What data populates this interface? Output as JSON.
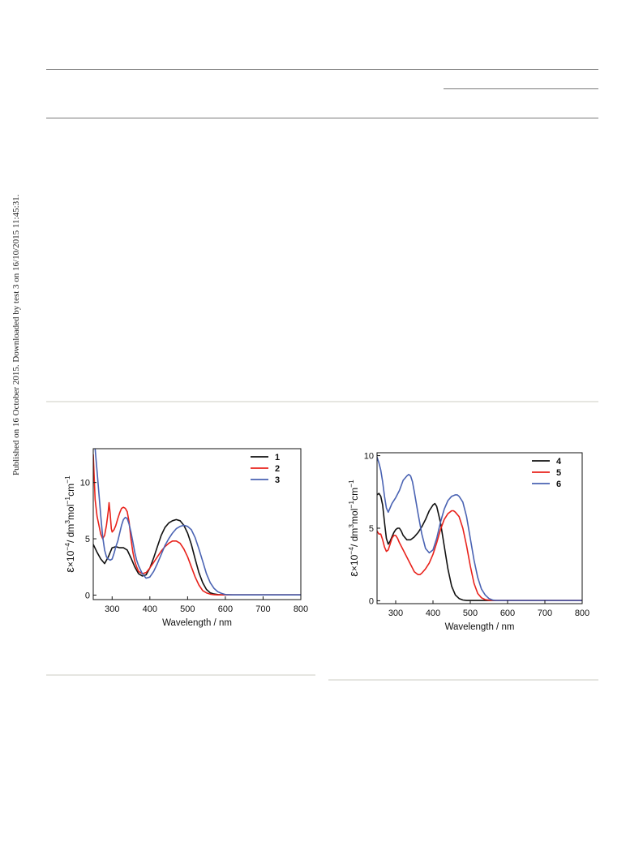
{
  "side_note": "Published on 16 October 2015. Downloaded by test 3 on 16/10/2015 11:45:31.",
  "chart_data": [
    {
      "type": "line",
      "xlabel": "Wavelength / nm",
      "ylabel_parts": [
        "ε",
        "×10",
        "−4",
        "/ dm",
        "3",
        "mol",
        "−1",
        "cm",
        "−1"
      ],
      "xlim": [
        250,
        800
      ],
      "ylim": [
        -0.4,
        13
      ],
      "xticks": [
        300,
        400,
        500,
        600,
        700,
        800
      ],
      "yticks": [
        0,
        5,
        10
      ],
      "legend_position": "top-right",
      "series": [
        {
          "name": "1",
          "color": "#111111",
          "x": [
            250,
            260,
            270,
            280,
            290,
            300,
            310,
            320,
            330,
            340,
            350,
            360,
            370,
            380,
            390,
            400,
            410,
            420,
            430,
            440,
            450,
            460,
            470,
            480,
            490,
            500,
            510,
            520,
            530,
            540,
            550,
            560,
            570,
            580,
            590,
            600,
            620,
            650,
            700,
            750,
            800
          ],
          "y": [
            4.5,
            3.8,
            3.2,
            2.8,
            3.4,
            4.2,
            4.3,
            4.2,
            4.2,
            4.0,
            3.3,
            2.5,
            1.9,
            1.7,
            1.8,
            2.4,
            3.3,
            4.3,
            5.3,
            6.0,
            6.4,
            6.6,
            6.7,
            6.6,
            6.2,
            5.5,
            4.5,
            3.2,
            2.0,
            1.1,
            0.5,
            0.2,
            0.1,
            0.05,
            0.02,
            0.02,
            0.02,
            0.02,
            0.02,
            0.02,
            0.02
          ]
        },
        {
          "name": "2",
          "color": "#e8221b",
          "x": [
            250,
            255,
            260,
            265,
            270,
            275,
            280,
            285,
            290,
            292,
            295,
            298,
            300,
            305,
            310,
            315,
            320,
            325,
            330,
            335,
            340,
            345,
            350,
            355,
            360,
            365,
            370,
            380,
            390,
            400,
            410,
            420,
            430,
            440,
            450,
            460,
            470,
            480,
            490,
            500,
            510,
            520,
            530,
            540,
            550,
            560,
            570,
            580,
            590,
            600,
            620,
            650,
            700,
            750,
            800
          ],
          "y": [
            12.5,
            8.5,
            7.0,
            6.2,
            5.4,
            5.0,
            5.3,
            6.2,
            7.5,
            8.2,
            7.2,
            5.9,
            5.6,
            5.8,
            6.2,
            6.8,
            7.3,
            7.7,
            7.8,
            7.7,
            7.4,
            6.5,
            5.0,
            3.8,
            3.0,
            2.5,
            2.1,
            1.9,
            2.0,
            2.4,
            2.9,
            3.4,
            3.9,
            4.3,
            4.6,
            4.8,
            4.8,
            4.6,
            4.1,
            3.4,
            2.5,
            1.6,
            0.9,
            0.4,
            0.2,
            0.08,
            0.04,
            0.02,
            0.02,
            0.02,
            0.02,
            0.02,
            0.02,
            0.02,
            0.02
          ]
        },
        {
          "name": "3",
          "color": "#4a63b3",
          "x": [
            255,
            260,
            265,
            270,
            275,
            280,
            285,
            290,
            295,
            300,
            305,
            310,
            315,
            320,
            325,
            330,
            335,
            340,
            345,
            350,
            355,
            360,
            365,
            370,
            380,
            390,
            400,
            410,
            420,
            430,
            440,
            450,
            460,
            470,
            480,
            490,
            500,
            510,
            520,
            530,
            540,
            550,
            560,
            570,
            580,
            590,
            600,
            620,
            650,
            700,
            750,
            800
          ],
          "y": [
            13,
            11.0,
            9.0,
            7.0,
            5.2,
            4.0,
            3.4,
            3.2,
            3.1,
            3.2,
            3.7,
            4.3,
            4.8,
            5.5,
            6.2,
            6.7,
            6.9,
            6.8,
            6.3,
            5.6,
            4.7,
            3.8,
            3.1,
            2.6,
            1.9,
            1.5,
            1.6,
            2.1,
            2.8,
            3.6,
            4.4,
            5.0,
            5.5,
            5.9,
            6.1,
            6.2,
            6.1,
            5.8,
            5.1,
            4.1,
            3.0,
            1.9,
            1.1,
            0.6,
            0.3,
            0.15,
            0.05,
            0.02,
            0.02,
            0.02,
            0.02,
            0.02
          ]
        }
      ]
    },
    {
      "type": "line",
      "xlabel": "Wavelength / nm",
      "ylabel_parts": [
        "ε",
        "×10",
        "−4",
        "/ dm",
        "3",
        "mol",
        "−1",
        "cm",
        "−1"
      ],
      "xlim": [
        250,
        800
      ],
      "ylim": [
        -0.2,
        10.2
      ],
      "xticks": [
        300,
        400,
        500,
        600,
        700,
        800
      ],
      "yticks": [
        0,
        5,
        10
      ],
      "legend_position": "top-right",
      "series": [
        {
          "name": "4",
          "color": "#111111",
          "x": [
            250,
            255,
            260,
            265,
            270,
            275,
            280,
            285,
            290,
            295,
            300,
            305,
            310,
            315,
            320,
            330,
            340,
            350,
            360,
            370,
            380,
            390,
            400,
            405,
            410,
            420,
            430,
            440,
            450,
            460,
            470,
            480,
            490,
            500,
            520,
            550,
            600,
            650,
            700,
            750,
            800
          ],
          "y": [
            7.3,
            7.4,
            7.2,
            6.6,
            5.4,
            4.3,
            3.9,
            4.1,
            4.4,
            4.7,
            4.9,
            5.0,
            5.0,
            4.8,
            4.5,
            4.2,
            4.2,
            4.4,
            4.7,
            5.1,
            5.6,
            6.2,
            6.6,
            6.7,
            6.5,
            5.4,
            3.8,
            2.2,
            1.0,
            0.4,
            0.15,
            0.05,
            0.02,
            0.02,
            0.02,
            0.02,
            0.02,
            0.02,
            0.02,
            0.02,
            0.02
          ]
        },
        {
          "name": "5",
          "color": "#e8221b",
          "x": [
            250,
            255,
            260,
            265,
            270,
            275,
            280,
            285,
            290,
            295,
            300,
            305,
            310,
            320,
            330,
            340,
            350,
            360,
            365,
            370,
            380,
            390,
            400,
            410,
            420,
            430,
            440,
            450,
            455,
            460,
            470,
            480,
            490,
            500,
            510,
            520,
            530,
            540,
            550,
            570,
            600,
            650,
            700,
            750,
            800
          ],
          "y": [
            4.8,
            4.6,
            4.6,
            4.2,
            3.7,
            3.4,
            3.5,
            3.9,
            4.3,
            4.5,
            4.5,
            4.3,
            4.0,
            3.5,
            3.0,
            2.5,
            2.0,
            1.8,
            1.8,
            1.9,
            2.2,
            2.6,
            3.2,
            4.0,
            4.9,
            5.6,
            6.0,
            6.2,
            6.2,
            6.1,
            5.8,
            5.0,
            3.8,
            2.4,
            1.2,
            0.5,
            0.2,
            0.08,
            0.04,
            0.02,
            0.02,
            0.02,
            0.02,
            0.02,
            0.02
          ]
        },
        {
          "name": "6",
          "color": "#4a63b3",
          "x": [
            250,
            255,
            260,
            265,
            270,
            275,
            280,
            285,
            290,
            300,
            310,
            320,
            330,
            335,
            340,
            345,
            350,
            360,
            370,
            380,
            390,
            400,
            410,
            420,
            430,
            440,
            450,
            460,
            465,
            470,
            480,
            490,
            500,
            510,
            520,
            530,
            540,
            550,
            560,
            570,
            600,
            650,
            700,
            750,
            800
          ],
          "y": [
            9.9,
            9.5,
            9.0,
            8.2,
            7.2,
            6.4,
            6.1,
            6.4,
            6.7,
            7.1,
            7.6,
            8.3,
            8.6,
            8.7,
            8.6,
            8.2,
            7.5,
            6.0,
            4.6,
            3.6,
            3.3,
            3.5,
            4.3,
            5.4,
            6.3,
            6.9,
            7.2,
            7.3,
            7.3,
            7.2,
            6.8,
            5.8,
            4.3,
            2.8,
            1.6,
            0.8,
            0.4,
            0.15,
            0.05,
            0.02,
            0.02,
            0.02,
            0.02,
            0.02,
            0.02
          ]
        }
      ]
    }
  ]
}
